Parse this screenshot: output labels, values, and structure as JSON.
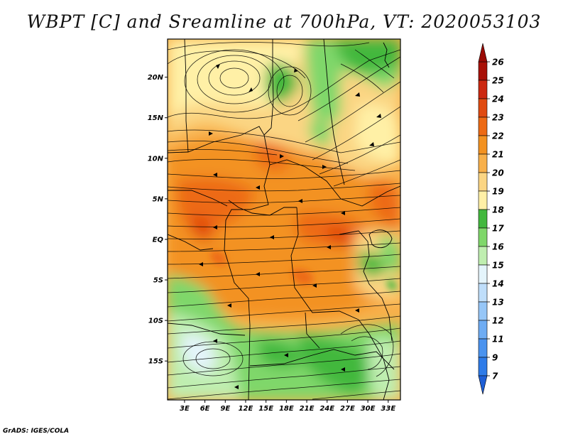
{
  "title": "WBPT [C] and Sreamline at 700hPa, VT: 2020053103",
  "credit": "GrADS: IGES/COLA",
  "map": {
    "lat_labels": [
      "20N",
      "15N",
      "10N",
      "5N",
      "EQ",
      "5S",
      "10S",
      "15S"
    ],
    "lat_values": [
      20,
      15,
      10,
      5,
      0,
      -5,
      -10,
      -15
    ],
    "lon_labels": [
      "3E",
      "6E",
      "9E",
      "12E",
      "15E",
      "18E",
      "21E",
      "24E",
      "27E",
      "30E",
      "33E"
    ],
    "lon_values": [
      3,
      6,
      9,
      12,
      15,
      18,
      21,
      24,
      27,
      30,
      33
    ],
    "lon_range": [
      0.5,
      34.8
    ],
    "lat_range": [
      -19.8,
      24.7
    ]
  },
  "colorbar": {
    "labels": [
      "7",
      "9",
      "11",
      "12",
      "13",
      "14",
      "15",
      "16",
      "17",
      "18",
      "19",
      "20",
      "21",
      "22",
      "23",
      "24",
      "25",
      "26"
    ],
    "colors": [
      "#1e64dc",
      "#2e7be8",
      "#4a93ef",
      "#6eacf3",
      "#96c6f7",
      "#bfdefa",
      "#e4f4fb",
      "#bfeeb0",
      "#7fd76a",
      "#42b83e",
      "#fff0a6",
      "#fbd583",
      "#f8b04a",
      "#f39221",
      "#ed6a14",
      "#e04a10",
      "#cc2810",
      "#a81006"
    ],
    "min_color": "#1e5fd6",
    "max_color": "#9a0a04"
  }
}
